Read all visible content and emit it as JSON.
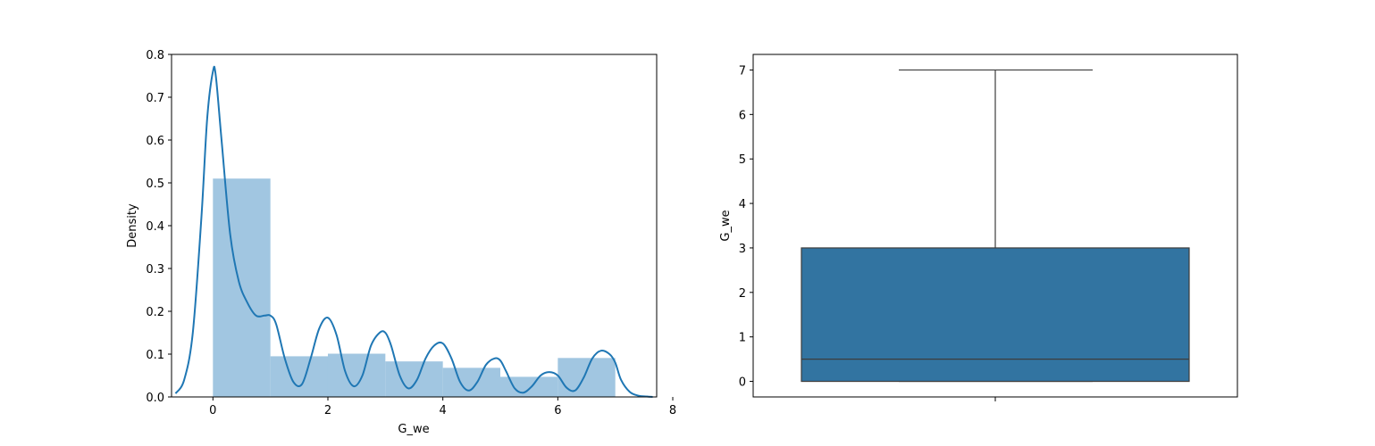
{
  "chart_data": [
    {
      "type": "histogram",
      "xlabel": "G_we",
      "ylabel": "Density",
      "xlim": [
        -0.72,
        7.72
      ],
      "ylim": [
        0,
        0.8
      ],
      "x_ticks": [
        0,
        2,
        4,
        6,
        8
      ],
      "y_ticks": [
        0.0,
        0.1,
        0.2,
        0.3,
        0.4,
        0.5,
        0.6,
        0.7,
        0.8
      ],
      "x_tick_labels": [
        "0",
        "2",
        "4",
        "6",
        "8"
      ],
      "y_tick_labels": [
        "0.0",
        "0.1",
        "0.2",
        "0.3",
        "0.4",
        "0.5",
        "0.6",
        "0.7",
        "0.8"
      ],
      "bins": [
        {
          "start": 0,
          "end": 1,
          "density": 0.51
        },
        {
          "start": 1,
          "end": 2,
          "density": 0.095
        },
        {
          "start": 2,
          "end": 3,
          "density": 0.101
        },
        {
          "start": 3,
          "end": 4,
          "density": 0.083
        },
        {
          "start": 4,
          "end": 5,
          "density": 0.068
        },
        {
          "start": 5,
          "end": 6,
          "density": 0.047
        },
        {
          "start": 6,
          "end": 7,
          "density": 0.091
        }
      ],
      "kde": {
        "x": [
          -0.65,
          -0.5,
          -0.35,
          -0.2,
          -0.1,
          0.0,
          0.05,
          0.15,
          0.3,
          0.45,
          0.6,
          0.75,
          0.9,
          1.0,
          1.1,
          1.25,
          1.4,
          1.55,
          1.7,
          1.85,
          2.0,
          2.15,
          2.3,
          2.45,
          2.6,
          2.75,
          2.9,
          3.0,
          3.1,
          3.25,
          3.4,
          3.55,
          3.7,
          3.85,
          4.0,
          4.15,
          4.3,
          4.45,
          4.6,
          4.75,
          4.9,
          5.0,
          5.1,
          5.25,
          5.4,
          5.55,
          5.7,
          5.85,
          6.0,
          6.15,
          6.3,
          6.45,
          6.6,
          6.75,
          6.9,
          7.0,
          7.1,
          7.25,
          7.4,
          7.55,
          7.65
        ],
        "y": [
          0.008,
          0.04,
          0.15,
          0.42,
          0.65,
          0.76,
          0.75,
          0.6,
          0.38,
          0.27,
          0.22,
          0.19,
          0.19,
          0.19,
          0.17,
          0.09,
          0.035,
          0.03,
          0.09,
          0.16,
          0.185,
          0.145,
          0.06,
          0.025,
          0.05,
          0.12,
          0.15,
          0.15,
          0.12,
          0.05,
          0.02,
          0.04,
          0.09,
          0.12,
          0.125,
          0.09,
          0.035,
          0.015,
          0.035,
          0.075,
          0.09,
          0.085,
          0.06,
          0.02,
          0.01,
          0.025,
          0.05,
          0.058,
          0.05,
          0.022,
          0.015,
          0.045,
          0.09,
          0.108,
          0.1,
          0.08,
          0.04,
          0.012,
          0.003,
          0.001,
          0.0
        ]
      },
      "colors": {
        "bar": "#a1c6e1",
        "line": "#1f77b4"
      }
    },
    {
      "type": "box",
      "ylabel": "G_we",
      "ylim": [
        -0.35,
        7.35
      ],
      "y_ticks": [
        0,
        1,
        2,
        3,
        4,
        5,
        6,
        7
      ],
      "y_tick_labels": [
        "0",
        "1",
        "2",
        "3",
        "4",
        "5",
        "6",
        "7"
      ],
      "box": {
        "min": 0,
        "q1": 0,
        "median": 0.5,
        "q3": 3,
        "max": 7
      },
      "colors": {
        "box": "#3274a1",
        "line": "#3d3d3d"
      }
    }
  ]
}
